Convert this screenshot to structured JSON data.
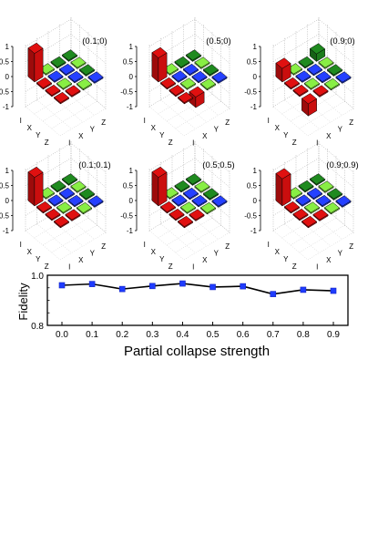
{
  "matrix_panels": {
    "axis_ticks": [
      "1",
      "0.5",
      "0",
      "-0.5",
      "-1"
    ],
    "basis_labels": [
      "I",
      "X",
      "Y",
      "Z"
    ],
    "panels": [
      {
        "title": "(0.1;0)"
      },
      {
        "title": "(0.5;0)"
      },
      {
        "title": "(0.9;0)"
      },
      {
        "title": "(0.1;0.1)"
      },
      {
        "title": "(0.5;0.5)"
      },
      {
        "title": "(0.9;0.9)"
      }
    ]
  },
  "chart_data": {
    "type": "line",
    "x": [
      "0.0",
      "0.1",
      "0.2",
      "0.3",
      "0.4",
      "0.5",
      "0.6",
      "0.7",
      "0.8",
      "0.9"
    ],
    "series": [
      {
        "values": [
          0.96,
          0.965,
          0.945,
          0.957,
          0.967,
          0.953,
          0.956,
          0.925,
          0.942,
          0.938
        ]
      }
    ],
    "xlabel": "Partial collapse strength",
    "ylabel": "Fidelity",
    "ylim": [
      0.8,
      1.0
    ],
    "y_ticks": [
      "0.8",
      "1.0"
    ],
    "grid": false,
    "marker": "square",
    "colors": {
      "line": "#000000",
      "marker": "#1f3cff"
    }
  },
  "colors": {
    "positive_large": "#e01010",
    "positive_small": "#88ee44",
    "dark_green": "#1f8a1f",
    "blue": "#2540ff",
    "red": "#e01010"
  }
}
